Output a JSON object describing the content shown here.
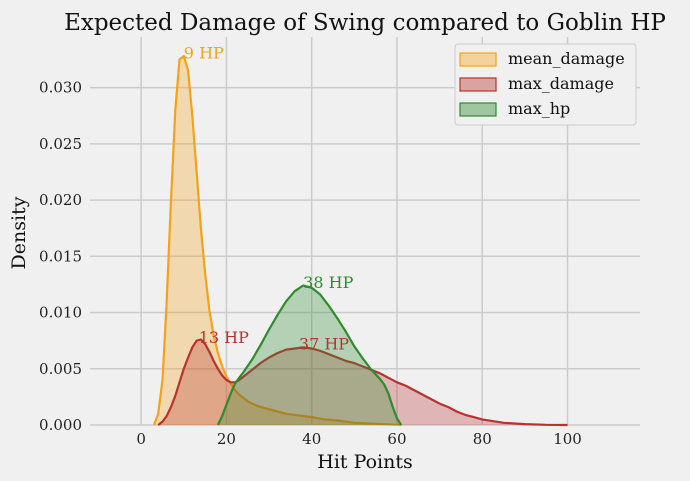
{
  "chart_data": {
    "type": "area",
    "title": "Expected Damage of Swing compared to Goblin HP",
    "xlabel": "Hit Points",
    "ylabel": "Density",
    "xlim": [
      -12,
      117
    ],
    "ylim": [
      0,
      0.0345
    ],
    "xticks": [
      0,
      20,
      40,
      60,
      80,
      100
    ],
    "xtick_labels": [
      "0",
      "20",
      "40",
      "60",
      "80",
      "100"
    ],
    "yticks": [
      0,
      0.005,
      0.01,
      0.015,
      0.02,
      0.025,
      0.03
    ],
    "ytick_labels": [
      "0.000",
      "0.005",
      "0.010",
      "0.015",
      "0.020",
      "0.025",
      "0.030"
    ],
    "grid": true,
    "legend_position": "top-right",
    "series": [
      {
        "name": "mean_damage",
        "color": "#f5a21a",
        "fill": "#f5d29a",
        "x": [
          3,
          4,
          5,
          6,
          7,
          8,
          9,
          10,
          11,
          12,
          13,
          14,
          15,
          16,
          17,
          18,
          19,
          20,
          21,
          22,
          23,
          24,
          25,
          26,
          28,
          30,
          32,
          34,
          36,
          38,
          40,
          43,
          46,
          50,
          55,
          60,
          61
        ],
        "y": [
          0,
          0.001,
          0.004,
          0.011,
          0.02,
          0.028,
          0.0325,
          0.0328,
          0.0315,
          0.0275,
          0.0225,
          0.0175,
          0.0135,
          0.0102,
          0.008,
          0.0064,
          0.0052,
          0.0043,
          0.0037,
          0.0031,
          0.0027,
          0.0024,
          0.0021,
          0.0019,
          0.0016,
          0.0014,
          0.0012,
          0.001,
          0.0009,
          0.0008,
          0.0007,
          0.0005,
          0.0004,
          0.0002,
          0.0001,
          2e-05,
          0
        ]
      },
      {
        "name": "max_damage",
        "color": "#b8332e",
        "fill": "#d7a3a3",
        "x": [
          4,
          5,
          6,
          7,
          8,
          9,
          10,
          11,
          12,
          13,
          14,
          15,
          16,
          17,
          18,
          19,
          20,
          21,
          22,
          23,
          24,
          26,
          28,
          30,
          32,
          34,
          36,
          38,
          40,
          42,
          44,
          46,
          48,
          50,
          52,
          54,
          56,
          58,
          60,
          62,
          64,
          66,
          68,
          70,
          72,
          74,
          76,
          78,
          80,
          85,
          90,
          95,
          100
        ],
        "y": [
          0,
          0.0003,
          0.0008,
          0.0016,
          0.0026,
          0.0038,
          0.005,
          0.006,
          0.0069,
          0.0075,
          0.0076,
          0.0072,
          0.0065,
          0.0057,
          0.005,
          0.0044,
          0.004,
          0.0038,
          0.0038,
          0.004,
          0.0043,
          0.0049,
          0.0055,
          0.006,
          0.0064,
          0.0067,
          0.0068,
          0.0069,
          0.0068,
          0.0066,
          0.0063,
          0.006,
          0.0057,
          0.0055,
          0.0052,
          0.0049,
          0.0046,
          0.0042,
          0.0038,
          0.0035,
          0.0031,
          0.0027,
          0.0023,
          0.0019,
          0.0016,
          0.0012,
          0.0009,
          0.0007,
          0.0005,
          0.0002,
          8e-05,
          2e-05,
          0
        ]
      },
      {
        "name": "max_hp",
        "color": "#2e8b2e",
        "fill": "#9fc79f",
        "x": [
          18,
          19,
          20,
          21,
          22,
          24,
          26,
          28,
          30,
          32,
          34,
          36,
          38,
          40,
          42,
          44,
          46,
          48,
          50,
          52,
          54,
          56,
          57,
          58,
          59,
          60,
          61
        ],
        "y": [
          0,
          0.0008,
          0.0018,
          0.0028,
          0.0037,
          0.0047,
          0.0058,
          0.0071,
          0.0085,
          0.0098,
          0.011,
          0.0119,
          0.0124,
          0.0122,
          0.0116,
          0.0106,
          0.0095,
          0.0083,
          0.007,
          0.0059,
          0.0049,
          0.0041,
          0.0036,
          0.0028,
          0.0016,
          0.0006,
          0
        ]
      }
    ],
    "annotations": [
      {
        "text": "9 HP",
        "x": 10,
        "y": 0.0326,
        "color": "#f5a21a"
      },
      {
        "text": "13 HP",
        "x": 13.5,
        "y": 0.0073,
        "color": "#b8332e"
      },
      {
        "text": "38 HP",
        "x": 38,
        "y": 0.0122,
        "color": "#2e8b2e"
      },
      {
        "text": "37 HP",
        "x": 37,
        "y": 0.0067,
        "color": "#b8332e"
      }
    ]
  }
}
